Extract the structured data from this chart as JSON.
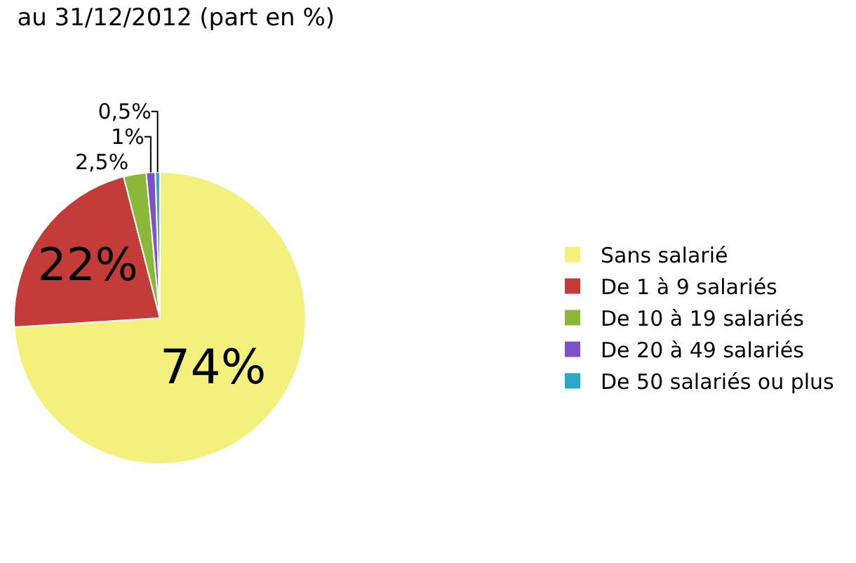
{
  "chart_data": {
    "type": "pie",
    "title": "au 31/12/2012 (part en %)",
    "categories": [
      "Sans salarié",
      "De 1 à 9 salariés",
      "De 10 à 19 salariés",
      "De 20 à 49 salariés",
      "De 50 salariés ou plus"
    ],
    "values": [
      74,
      22,
      2.5,
      1,
      0.5
    ],
    "value_labels": [
      "74%",
      "22%",
      "2,5%",
      "1%",
      "0,5%"
    ],
    "colors": [
      "#f4f07c",
      "#c43c3a",
      "#8cb83a",
      "#7d52c8",
      "#2aa8c8"
    ],
    "legend": "right"
  }
}
